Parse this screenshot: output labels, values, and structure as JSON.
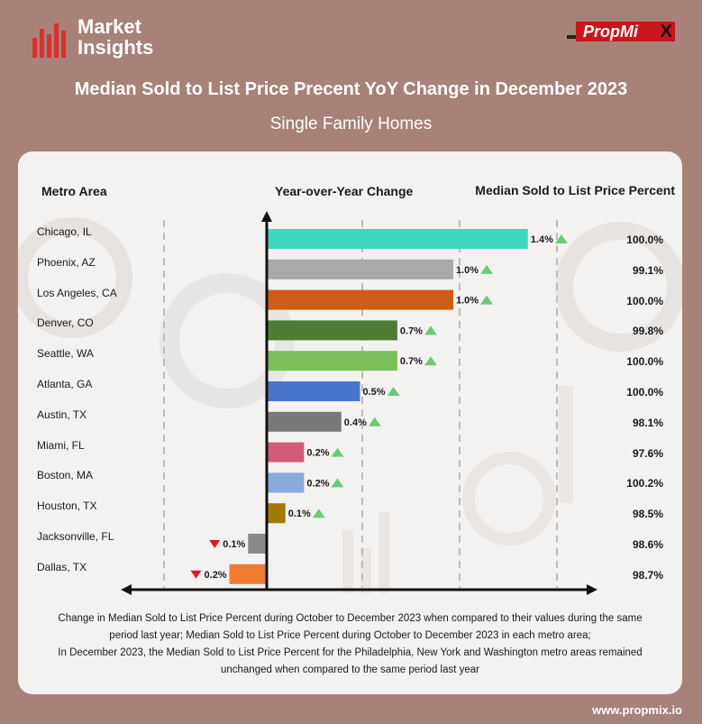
{
  "header": {
    "logo_line1": "Market",
    "logo_line2": "Insights",
    "brand": "PropMi",
    "brand_x": "X",
    "title": "Median Sold to List Price Precent YoY Change in December 2023",
    "subtitle": "Single Family Homes"
  },
  "columns": {
    "metro": "Metro Area",
    "yoy": "Year-over-Year Change",
    "pct": "Median Sold to List Price Percent"
  },
  "chart_data": {
    "type": "bar",
    "orientation": "horizontal",
    "categories": [
      "Chicago, IL",
      "Phoenix, AZ",
      "Los Angeles, CA",
      "Denver, CO",
      "Seattle, WA",
      "Atlanta, GA",
      "Austin, TX",
      "Miami, FL",
      "Boston, MA",
      "Houston, TX",
      "Jacksonville, FL",
      "Dallas, TX"
    ],
    "values": [
      1.4,
      1.0,
      1.0,
      0.7,
      0.7,
      0.5,
      0.4,
      0.2,
      0.2,
      0.1,
      -0.1,
      -0.2
    ],
    "value_labels": [
      "1.4%",
      "1.0%",
      "1.0%",
      "0.7%",
      "0.7%",
      "0.5%",
      "0.4%",
      "0.2%",
      "0.2%",
      "0.1%",
      "0.1%",
      "0.2%"
    ],
    "colors": [
      "#3fd6c0",
      "#a9a9a9",
      "#cd5c17",
      "#4e7c34",
      "#7bbf59",
      "#4775c9",
      "#797979",
      "#d45a7a",
      "#8aa9de",
      "#a37a07",
      "#8a8a8a",
      "#ee7c33"
    ],
    "median_percent": [
      "100.0%",
      "99.1%",
      "100.0%",
      "99.8%",
      "100.0%",
      "100.0%",
      "98.1%",
      "97.6%",
      "100.2%",
      "98.5%",
      "98.6%",
      "98.7%"
    ],
    "up_color": "#6cc97a",
    "down_color": "#d51e1e",
    "title": "Median Sold to List Price Precent YoY Change in December 2023",
    "xlabel": "Year-over-Year Change",
    "ylabel": "Metro Area",
    "grid": true
  },
  "footnote": {
    "line1": "Change in Median Sold to List Price Percent during October to December 2023 when compared to their values during the same period last year; Median Sold to List Price Percent during October to December 2023 in each metro area;",
    "line2": "In December 2023, the Median Sold to List Price Percent for the Philadelphia, New York and Washington metro areas remained unchanged when compared to the same period last year"
  },
  "website": "www.propmix.io"
}
